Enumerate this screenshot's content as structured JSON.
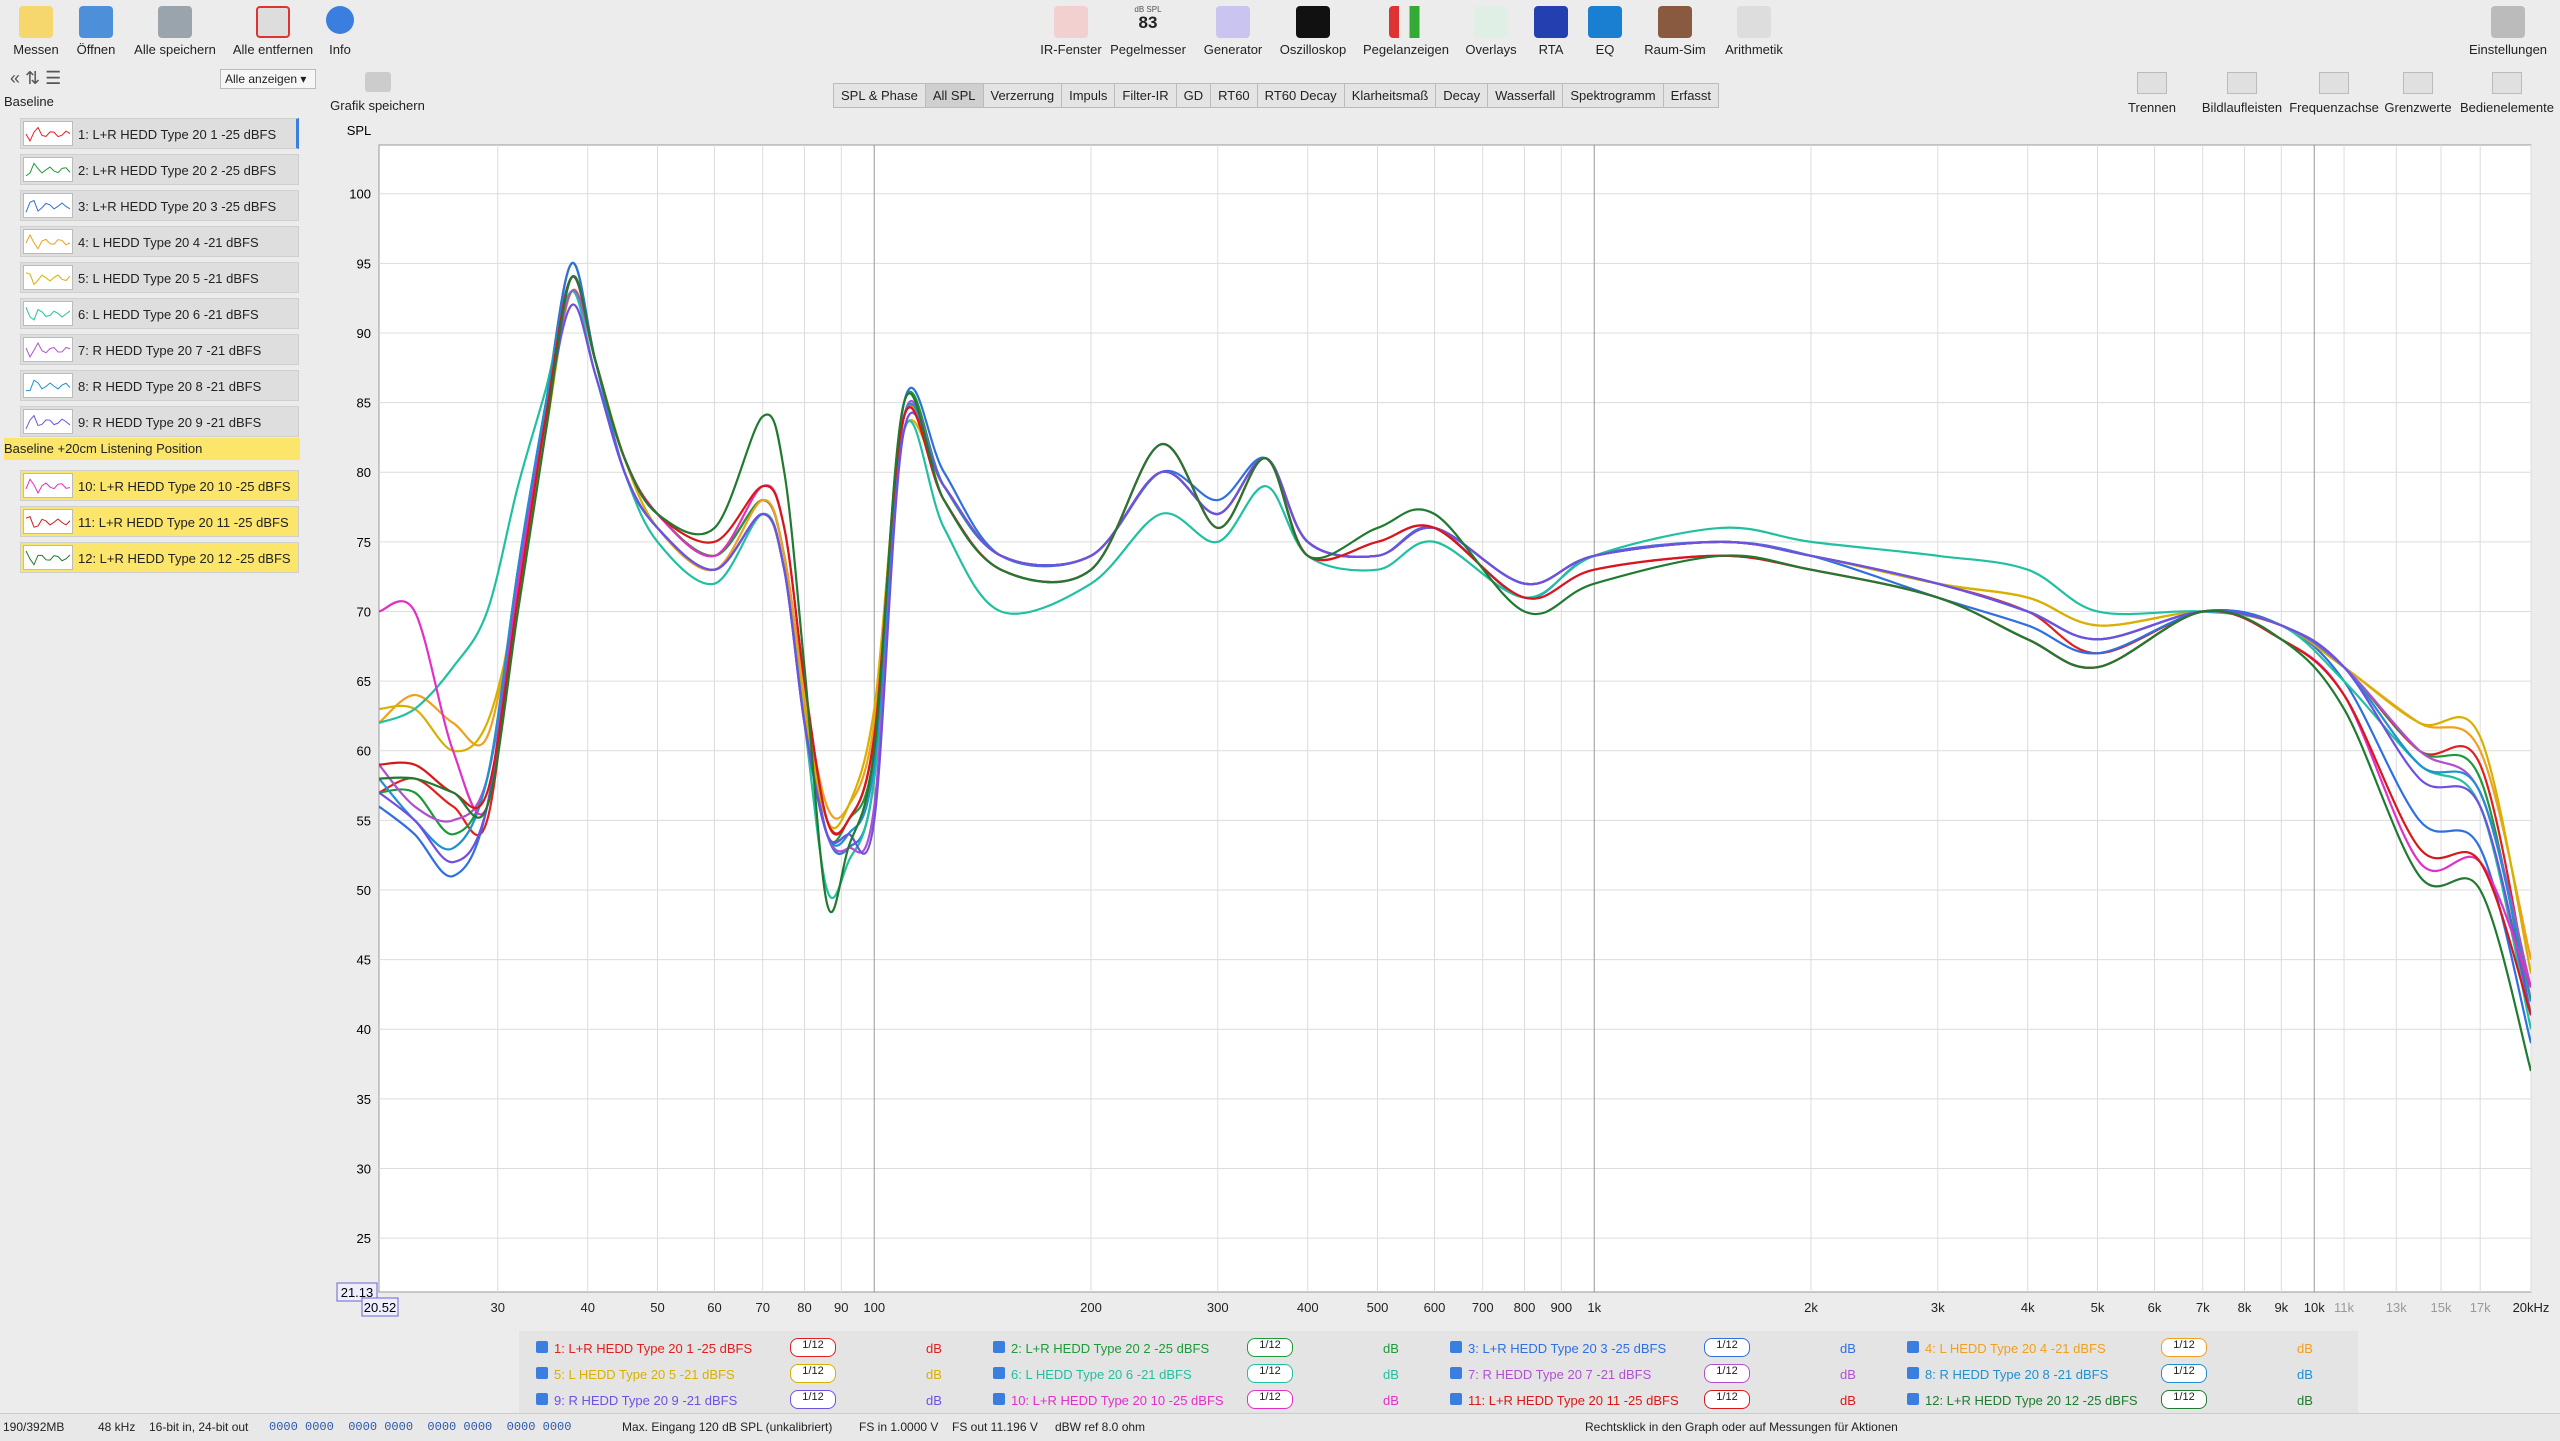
{
  "toolbar": {
    "left": [
      "Messen",
      "Öffnen",
      "Alle speichern",
      "Alle entfernen",
      "Info"
    ],
    "center": [
      "IR-Fenster",
      "Pegelmesser",
      "Generator",
      "Oszilloskop",
      "Pegelanzeigen",
      "Overlays",
      "RTA",
      "EQ",
      "Raum-Sim",
      "Arithmetik"
    ],
    "spl_meter_unit": "dB SPL",
    "spl_meter_value": "83",
    "right": [
      "Einstellungen"
    ]
  },
  "sidebar": {
    "show_menu": "Alle anzeigen",
    "groups": [
      "Baseline",
      "Baseline +20cm Listening Position"
    ]
  },
  "graph_tools": {
    "save": "Grafik speichern",
    "tabs": [
      "SPL & Phase",
      "All SPL",
      "Verzerrung",
      "Impuls",
      "Filter-IR",
      "GD",
      "RT60",
      "RT60 Decay",
      "Klarheitsmaß",
      "Decay",
      "Wasserfall",
      "Spektrogramm",
      "Erfasst"
    ],
    "right": [
      "Trennen",
      "Bildlaufleisten",
      "Frequenzachse",
      "Grenzwerte",
      "Bedienelemente"
    ]
  },
  "chart_data": {
    "type": "line",
    "y_label": "SPL",
    "log_x": true,
    "grid": true,
    "smoothing": "1/12",
    "unit": "dB",
    "xlim": [
      20.52,
      20000
    ],
    "ylim": [
      21.13,
      103.5
    ],
    "xticks": [
      30,
      40,
      50,
      60,
      70,
      80,
      90,
      100,
      200,
      300,
      400,
      500,
      600,
      700,
      800,
      900,
      {
        "value": 1000,
        "label": "1k"
      },
      {
        "value": 2000,
        "label": "2k"
      },
      {
        "value": 3000,
        "label": "3k"
      },
      {
        "value": 4000,
        "label": "4k"
      },
      {
        "value": 5000,
        "label": "5k"
      },
      {
        "value": 6000,
        "label": "6k"
      },
      {
        "value": 7000,
        "label": "7k"
      },
      {
        "value": 8000,
        "label": "8k"
      },
      {
        "value": 9000,
        "label": "9k"
      },
      {
        "value": 10000,
        "label": "10k"
      },
      {
        "value": 11000,
        "label": "11k"
      },
      {
        "value": 13000,
        "label": "13k"
      },
      {
        "value": 15000,
        "label": "15k"
      },
      {
        "value": 17000,
        "label": "17k"
      },
      {
        "value": 20000,
        "label": "20kHz"
      }
    ],
    "yticks": [
      25,
      30,
      35,
      40,
      45,
      50,
      55,
      60,
      65,
      70,
      75,
      80,
      85,
      90,
      95,
      100
    ],
    "x": [
      20.52,
      23,
      26,
      29,
      32,
      35,
      38,
      41,
      45,
      50,
      60,
      70,
      75,
      80,
      86,
      92,
      100,
      110,
      125,
      150,
      200,
      250,
      300,
      350,
      400,
      500,
      600,
      800,
      1000,
      1500,
      2000,
      3000,
      4000,
      5000,
      7000,
      9000,
      11000,
      14000,
      17000,
      20000
    ],
    "series": [
      {
        "name": "1: L+R HEDD Type 20 1 -25 dBFS",
        "color": "#e02020",
        "values": [
          57,
          58,
          56,
          55,
          72,
          84,
          94,
          88,
          81,
          77,
          74,
          78,
          74,
          64,
          55,
          55,
          61,
          84,
          79,
          74,
          74,
          80,
          77,
          81,
          75,
          74,
          76,
          72,
          74,
          75,
          74,
          72,
          70,
          67,
          70,
          69,
          66,
          60,
          59,
          42
        ]
      },
      {
        "name": "2: L+R HEDD Type 20 2 -25 dBFS",
        "color": "#1e9a3a",
        "values": [
          57,
          57,
          54,
          58,
          73,
          85,
          95,
          88,
          81,
          77,
          74,
          78,
          74,
          63,
          54,
          55,
          60,
          85,
          79,
          74,
          74,
          80,
          77,
          81,
          75,
          74,
          76,
          72,
          74,
          75,
          74,
          72,
          70,
          68,
          70,
          69,
          66,
          60,
          58,
          41
        ]
      },
      {
        "name": "3: L+R HEDD Type 20 3 -25 dBFS",
        "color": "#2f6fe0",
        "values": [
          56,
          54,
          51,
          56,
          73,
          85,
          95,
          88,
          80,
          76,
          73,
          77,
          73,
          63,
          54,
          53,
          58,
          85,
          80,
          74,
          74,
          80,
          78,
          81,
          75,
          74,
          76,
          71,
          74,
          75,
          74,
          71,
          69,
          67,
          70,
          69,
          65,
          55,
          53,
          39
        ]
      },
      {
        "name": "4: L HEDD Type 20 4 -21 dBFS",
        "color": "#f0a020",
        "values": [
          62,
          64,
          62,
          61,
          72,
          84,
          94,
          88,
          81,
          76,
          73,
          78,
          74,
          64,
          56,
          56,
          62,
          84,
          79,
          74,
          74,
          80,
          77,
          81,
          75,
          74,
          76,
          72,
          74,
          75,
          74,
          72,
          71,
          69,
          70,
          69,
          66,
          62,
          60,
          45
        ]
      },
      {
        "name": "5: L HEDD Type 20 5 -21 dBFS",
        "color": "#d8b000",
        "values": [
          63,
          63,
          60,
          62,
          71,
          83,
          93,
          88,
          81,
          76,
          73,
          77,
          73,
          63,
          55,
          56,
          63,
          83,
          79,
          74,
          74,
          80,
          77,
          81,
          75,
          74,
          76,
          72,
          74,
          75,
          74,
          72,
          71,
          69,
          70,
          69,
          66,
          62,
          61,
          44
        ]
      },
      {
        "name": "6: L HEDD Type 20 6 -21 dBFS",
        "color": "#20c0a0",
        "values": [
          62,
          63,
          66,
          70,
          79,
          86,
          93,
          87,
          80,
          75,
          72,
          77,
          73,
          62,
          50,
          52,
          58,
          83,
          76,
          70,
          72,
          77,
          75,
          79,
          74,
          73,
          75,
          71,
          74,
          76,
          75,
          74,
          73,
          70,
          70,
          69,
          65,
          59,
          56,
          40
        ]
      },
      {
        "name": "7: R HEDD Type 20 7 -21 dBFS",
        "color": "#b050d0",
        "values": [
          59,
          56,
          55,
          58,
          72,
          84,
          93,
          88,
          80,
          76,
          73,
          77,
          73,
          62,
          54,
          53,
          56,
          84,
          79,
          74,
          74,
          80,
          77,
          81,
          75,
          74,
          76,
          72,
          74,
          75,
          74,
          72,
          70,
          68,
          70,
          69,
          66,
          60,
          57,
          43
        ]
      },
      {
        "name": "8: R HEDD Type 20 8 -21 dBFS",
        "color": "#2090d0",
        "values": [
          58,
          55,
          53,
          58,
          73,
          85,
          94,
          88,
          80,
          76,
          73,
          77,
          73,
          62,
          54,
          54,
          59,
          84,
          79,
          74,
          74,
          80,
          77,
          81,
          75,
          74,
          76,
          72,
          74,
          75,
          74,
          72,
          70,
          68,
          70,
          69,
          66,
          59,
          57,
          42
        ]
      },
      {
        "name": "9: R HEDD Type 20 9 -21 dBFS",
        "color": "#7050e0",
        "values": [
          57,
          55,
          52,
          56,
          72,
          84,
          92,
          87,
          80,
          76,
          73,
          77,
          73,
          62,
          54,
          54,
          55,
          83,
          79,
          74,
          74,
          80,
          77,
          81,
          75,
          74,
          76,
          72,
          74,
          75,
          74,
          72,
          70,
          68,
          70,
          69,
          66,
          58,
          56,
          41
        ]
      },
      {
        "name": "10: L+R HEDD Type 20 10 -25 dBFS",
        "color": "#e030c8",
        "values": [
          70,
          70,
          60,
          56,
          72,
          84,
          94,
          88,
          81,
          77,
          74,
          79,
          76,
          65,
          55,
          55,
          61,
          84,
          78,
          73,
          73,
          82,
          76,
          81,
          74,
          75,
          76,
          71,
          73,
          74,
          73,
          71,
          68,
          66,
          70,
          68,
          64,
          52,
          52,
          43
        ]
      },
      {
        "name": "11: L+R HEDD Type 20 11 -25 dBFS",
        "color": "#d81818",
        "values": [
          59,
          59,
          57,
          57,
          71,
          84,
          94,
          88,
          81,
          77,
          75,
          79,
          76,
          65,
          55,
          55,
          61,
          84,
          78,
          73,
          73,
          82,
          76,
          81,
          74,
          75,
          76,
          71,
          73,
          74,
          73,
          71,
          68,
          66,
          70,
          68,
          64,
          53,
          52,
          41
        ]
      },
      {
        "name": "12: L+R HEDD Type 20 12 -25 dBFS",
        "color": "#207a30",
        "values": [
          58,
          58,
          57,
          56,
          70,
          83,
          94,
          88,
          81,
          77,
          76,
          84,
          80,
          66,
          49,
          53,
          60,
          85,
          78,
          73,
          73,
          82,
          76,
          81,
          74,
          76,
          77,
          70,
          72,
          74,
          73,
          71,
          68,
          66,
          70,
          68,
          63,
          51,
          50,
          37
        ]
      }
    ]
  },
  "status_bar": [
    "190/392MB",
    "48 kHz",
    "16-bit in, 24-bit out",
    "0000 0000  0000 0000  0000 0000  0000 0000",
    "Max. Eingang 120 dB SPL (unkalibriert)",
    "FS in 1.0000 V",
    "FS out 11.196 V",
    "dBW ref 8.0 ohm",
    "Rechtsklick in den Graph oder auf Messungen für Aktionen"
  ]
}
